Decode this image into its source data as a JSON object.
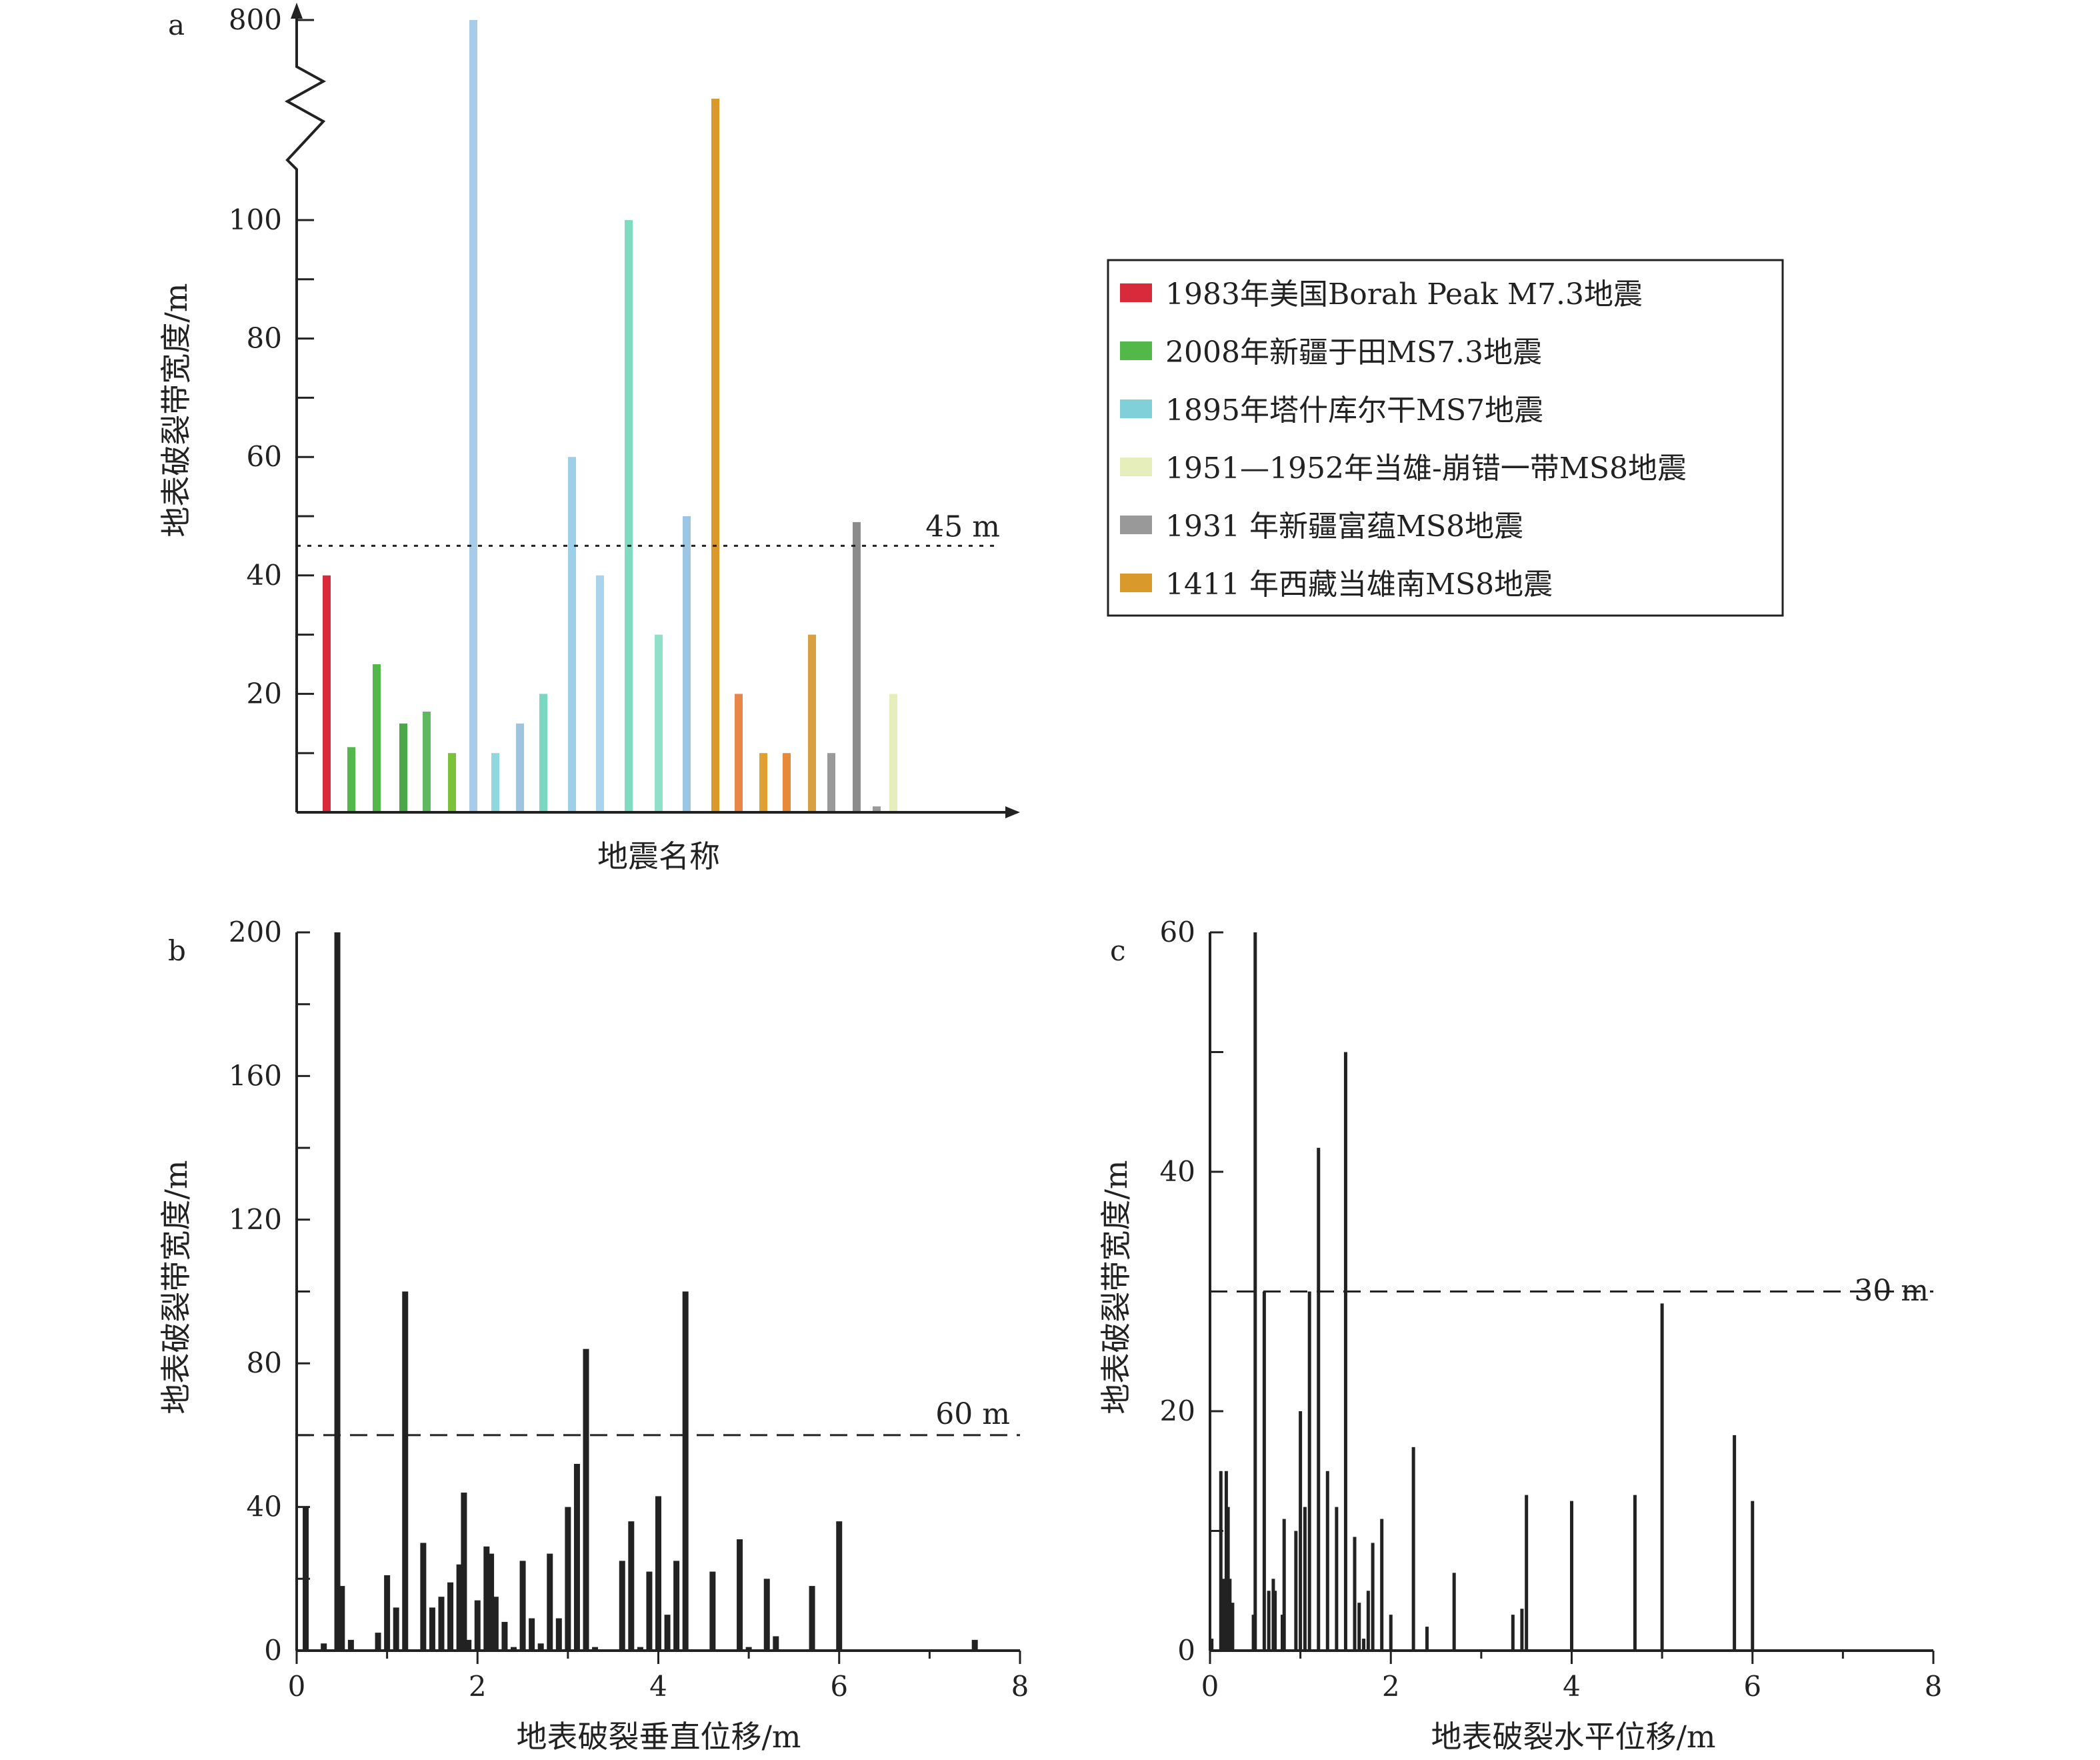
{
  "colors": {
    "axis": "#222222",
    "bar_dark": "#222222",
    "reference_line": "#222222"
  },
  "chart_data": [
    {
      "panel_label": "a",
      "type": "bar",
      "ylabel": "地表破裂带宽度/m",
      "xlabel": "地震名称",
      "y_ticks": [
        "20",
        "40",
        "60",
        "80",
        "100",
        "800"
      ],
      "y_ticks_values": [
        20,
        40,
        60,
        80,
        100,
        800
      ],
      "axis_break": true,
      "ylim": [
        0,
        120
      ],
      "reference_line": {
        "value": 45,
        "label": "45 m",
        "style": "dotted"
      },
      "legend": {
        "position": "right",
        "entries": [
          {
            "text": "1983年美国Borah Peak M7.3地震",
            "color": "#d82a3a"
          },
          {
            "text": "2008年新疆于田MS7.3地震",
            "color": "#53b84a"
          },
          {
            "text": "1895年塔什库尔干MS7地震",
            "color": "#7fd0d8"
          },
          {
            "text": "1951—1952年当雄-崩错一带MS8地震",
            "color": "#e6efbc"
          },
          {
            "text": "1931 年新疆富蕴MS8地震",
            "color": "#999999"
          },
          {
            "text": "1411 年西藏当雄南MS8地震",
            "color": "#d99a2b"
          }
        ]
      },
      "series": [
        {
          "name": "1983年美国Borah Peak M7.3地震",
          "color": "#d82a3a",
          "values": [
            40
          ]
        },
        {
          "name": "2008年新疆于田MS7.3地震",
          "color": "#53b84a",
          "values": [
            11,
            25,
            15,
            17,
            10
          ]
        },
        {
          "name": "1895年塔什库尔干MS7地震",
          "color": "#9dcde8",
          "values": [
            800,
            10,
            15,
            20,
            60,
            40,
            100,
            30,
            50
          ]
        },
        {
          "name": "1411 年西藏当雄南MS8地震",
          "color": "#d99a2b",
          "values": [
            250,
            20,
            10,
            10,
            30
          ]
        },
        {
          "name": "1931 年新疆富蕴MS8地震",
          "color": "#999999",
          "values": [
            10,
            49,
            1
          ]
        },
        {
          "name": "1951—1952年当雄-崩错一带MS8地震",
          "color": "#e6efbc",
          "values": [
            20
          ]
        }
      ],
      "bars": [
        {
          "value": 40,
          "color": "#d82a3a"
        },
        {
          "value": 11,
          "color": "#53b84a"
        },
        {
          "value": 25,
          "color": "#53b84a"
        },
        {
          "value": 15,
          "color": "#4ba84a"
        },
        {
          "value": 17,
          "color": "#60b860"
        },
        {
          "value": 10,
          "color": "#7cc13a"
        },
        {
          "value": 800,
          "color": "#a8cce8"
        },
        {
          "value": 10,
          "color": "#8fd8e0"
        },
        {
          "value": 15,
          "color": "#9ec4e0"
        },
        {
          "value": 20,
          "color": "#7ad8c0"
        },
        {
          "value": 60,
          "color": "#9ecfe8"
        },
        {
          "value": 40,
          "color": "#a8d4ec"
        },
        {
          "value": 100,
          "color": "#7fdcc0"
        },
        {
          "value": 30,
          "color": "#90e0c8"
        },
        {
          "value": 50,
          "color": "#9cc6e4"
        },
        {
          "value": 250,
          "color": "#d99a2b"
        },
        {
          "value": 20,
          "color": "#e8864a"
        },
        {
          "value": 10,
          "color": "#e0a032"
        },
        {
          "value": 10,
          "color": "#e68a3a"
        },
        {
          "value": 30,
          "color": "#d8a040"
        },
        {
          "value": 10,
          "color": "#9a9a9a"
        },
        {
          "value": 49,
          "color": "#8c8c8c"
        },
        {
          "value": 1,
          "color": "#9a9a9a"
        },
        {
          "value": 20,
          "color": "#e6efbc"
        }
      ]
    },
    {
      "panel_label": "b",
      "type": "bar",
      "xlabel": "地表破裂垂直位移/m",
      "ylabel": "地表破裂带宽度/m",
      "xlim": [
        0,
        8
      ],
      "ylim": [
        0,
        200
      ],
      "x_ticks": [
        "0",
        "2",
        "4",
        "6",
        "8"
      ],
      "x_ticks_values": [
        0,
        2,
        4,
        6,
        8
      ],
      "y_ticks": [
        "0",
        "40",
        "80",
        "120",
        "160",
        "200"
      ],
      "y_ticks_values": [
        0,
        40,
        80,
        120,
        160,
        200
      ],
      "reference_line": {
        "value": 60,
        "label": "60 m",
        "style": "dashed"
      },
      "x": [
        0.1,
        0.3,
        0.45,
        0.5,
        0.6,
        0.9,
        1.0,
        1.1,
        1.2,
        1.4,
        1.5,
        1.6,
        1.7,
        1.8,
        1.85,
        1.9,
        2.0,
        2.1,
        2.15,
        2.2,
        2.3,
        2.4,
        2.5,
        2.6,
        2.7,
        2.8,
        2.9,
        3.0,
        3.1,
        3.2,
        3.3,
        3.6,
        3.7,
        3.8,
        3.9,
        4.0,
        4.1,
        4.2,
        4.3,
        4.6,
        4.9,
        5.0,
        5.2,
        5.3,
        5.7,
        6.0,
        7.5
      ],
      "y": [
        40,
        2,
        200,
        18,
        3,
        5,
        21,
        12,
        100,
        30,
        12,
        15,
        19,
        24,
        44,
        3,
        14,
        29,
        27,
        15,
        8,
        1,
        25,
        9,
        2,
        27,
        9,
        40,
        52,
        84,
        1,
        25,
        36,
        1,
        22,
        43,
        10,
        25,
        100,
        22,
        31,
        1,
        20,
        4,
        18,
        36,
        3
      ]
    },
    {
      "panel_label": "c",
      "type": "bar",
      "xlabel": "地表破裂水平位移/m",
      "ylabel": "地表破裂带宽度/m",
      "xlim": [
        0,
        8
      ],
      "ylim": [
        0,
        60
      ],
      "x_ticks": [
        "0",
        "2",
        "4",
        "6",
        "8"
      ],
      "x_ticks_values": [
        0,
        2,
        4,
        6,
        8
      ],
      "y_ticks": [
        "0",
        "20",
        "40",
        "60"
      ],
      "y_ticks_values": [
        0,
        20,
        40,
        60
      ],
      "reference_line": {
        "value": 30,
        "label": "30 m",
        "style": "dashed"
      },
      "x": [
        0.02,
        0.12,
        0.15,
        0.18,
        0.2,
        0.22,
        0.25,
        0.48,
        0.5,
        0.6,
        0.65,
        0.7,
        0.72,
        0.8,
        0.82,
        0.95,
        1.0,
        1.05,
        1.1,
        1.2,
        1.3,
        1.4,
        1.5,
        1.6,
        1.65,
        1.7,
        1.75,
        1.8,
        1.9,
        2.0,
        2.25,
        2.4,
        2.7,
        3.35,
        3.45,
        3.5,
        4.0,
        4.7,
        5.0,
        5.8,
        6.0
      ],
      "y": [
        1,
        15,
        6,
        15,
        12,
        6,
        4,
        3,
        60,
        30,
        5,
        6,
        5,
        3,
        11,
        10,
        20,
        12,
        30,
        42,
        15,
        12,
        50,
        9.5,
        4,
        1,
        5,
        9,
        11,
        3,
        17,
        2,
        6.5,
        3,
        3.5,
        13,
        12.5,
        13,
        29,
        18,
        12.5
      ]
    }
  ]
}
